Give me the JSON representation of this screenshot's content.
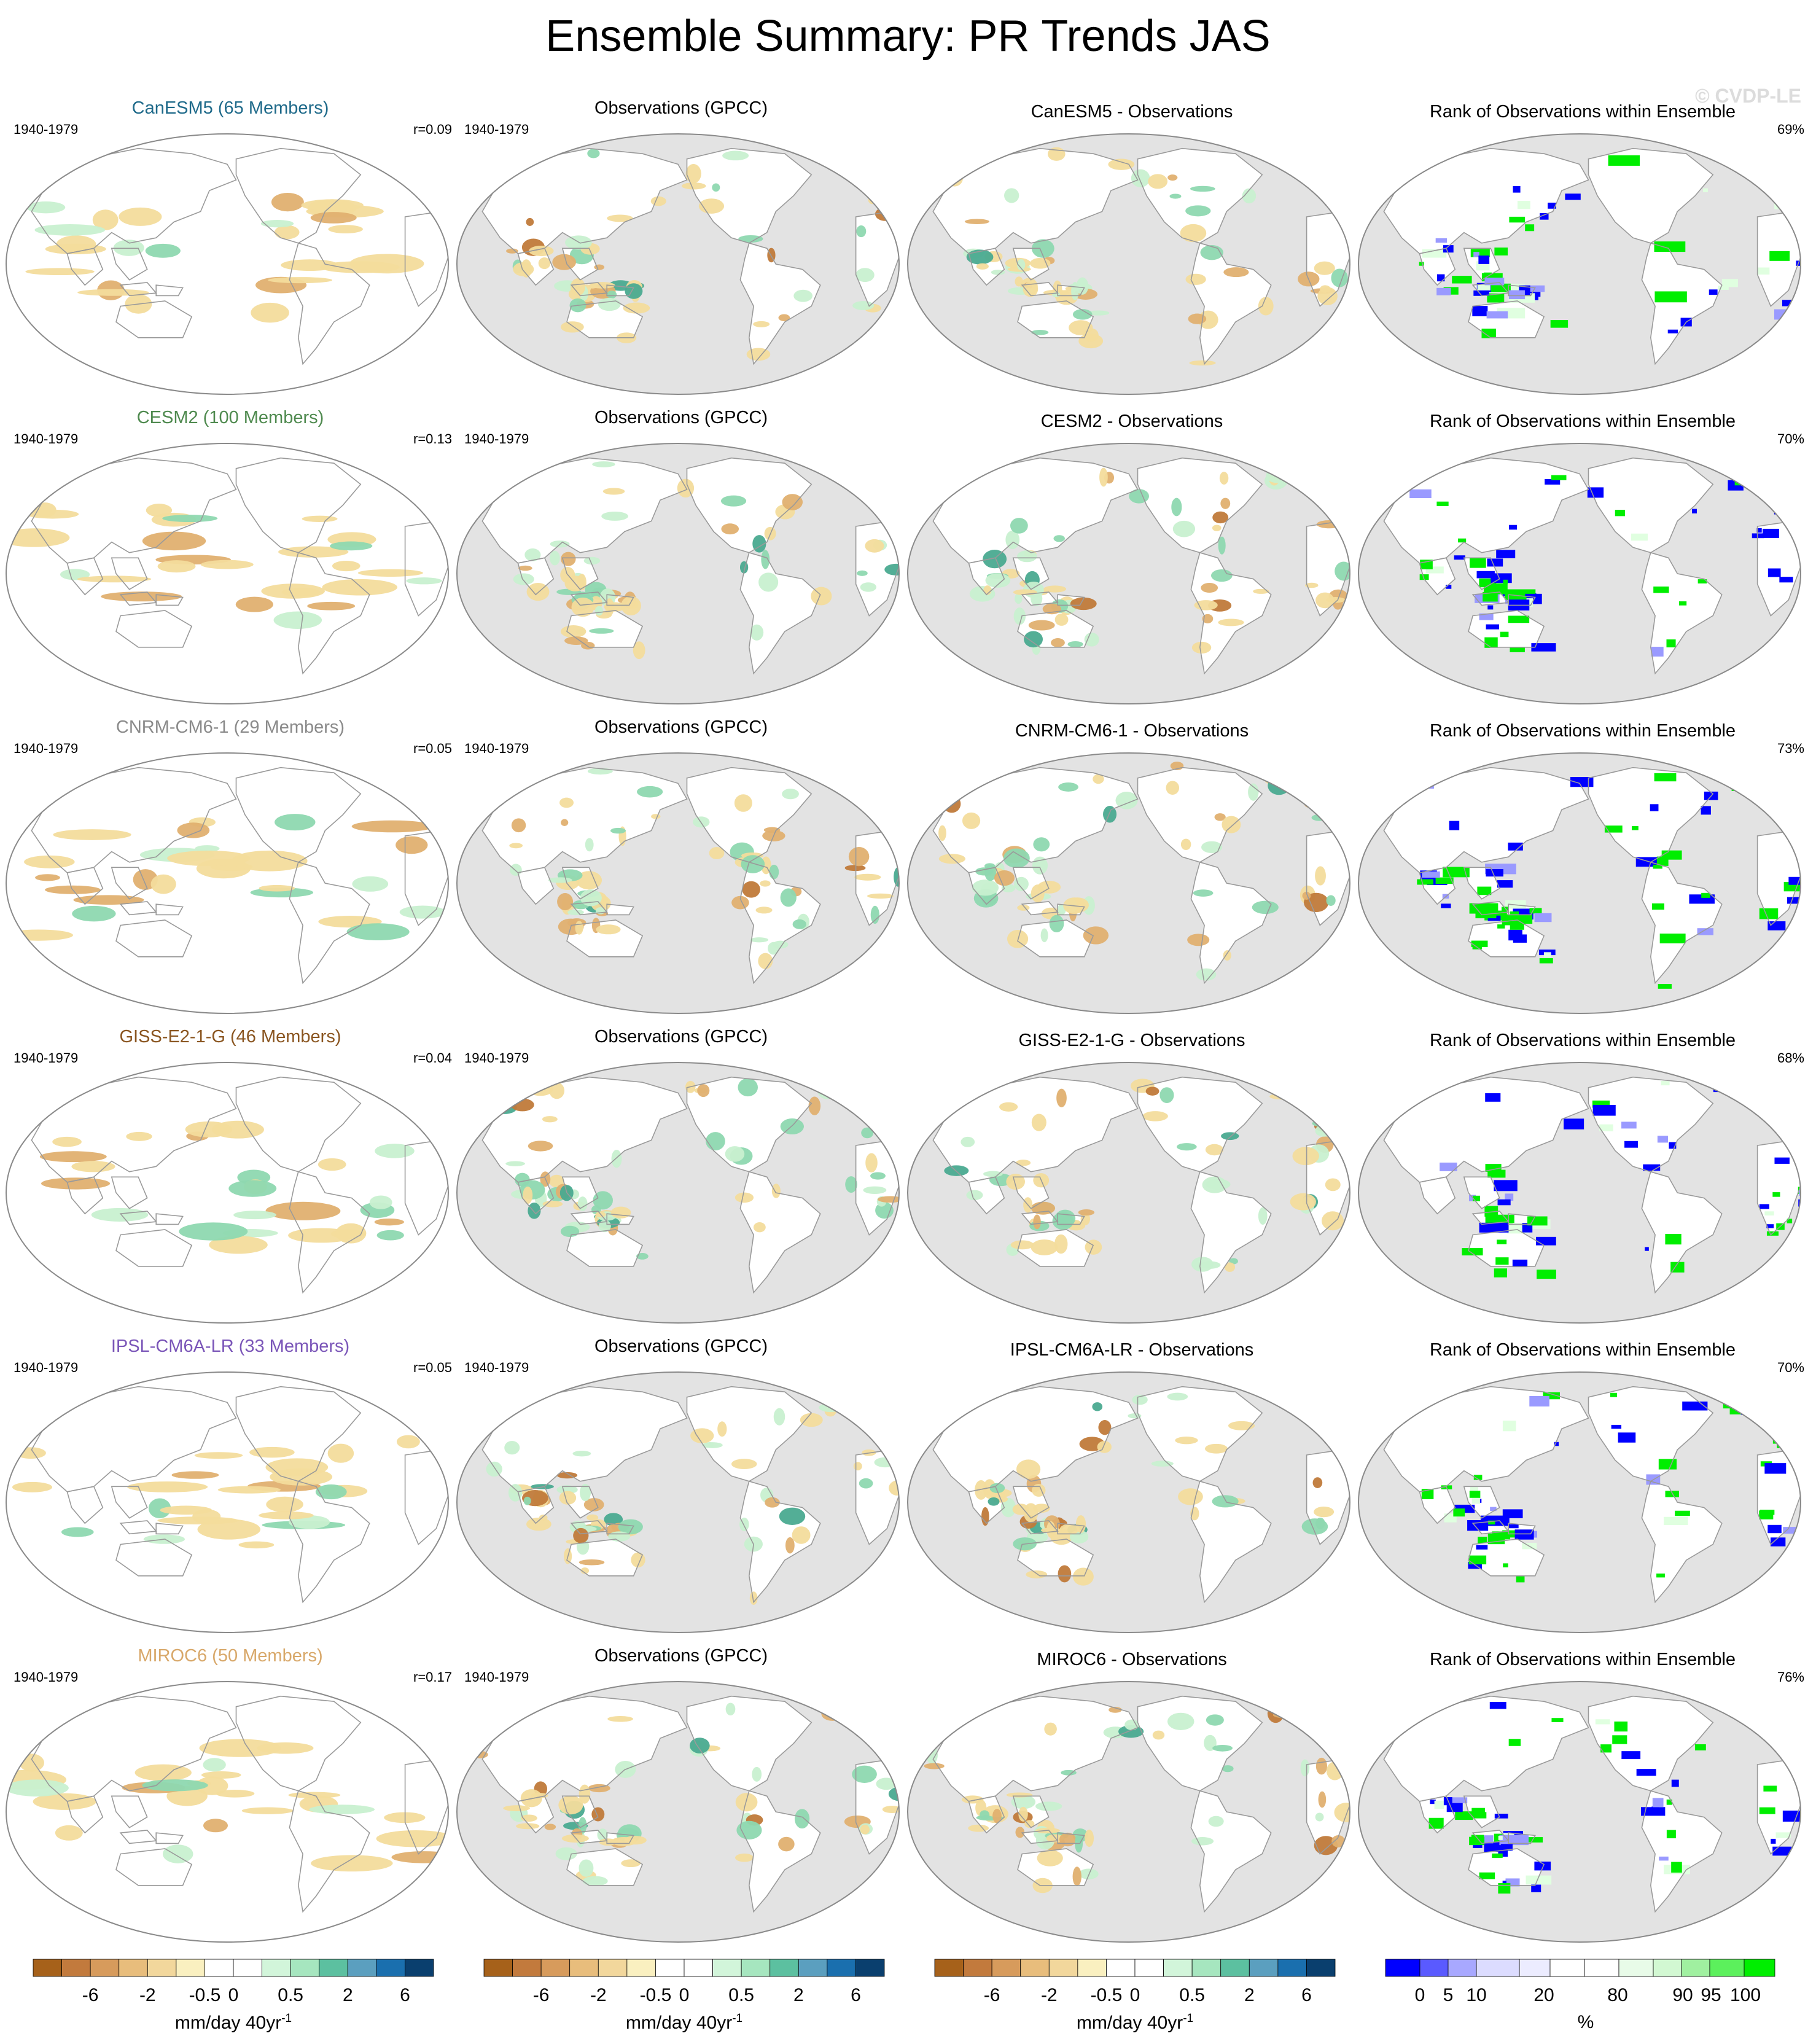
{
  "title": "Ensemble Summary: PR Trends JAS",
  "watermark": "© CVDP-LE",
  "obs_title": "Observations (GPCC)",
  "rank_title": "Rank of Observations within Ensemble",
  "period": "1940-1979",
  "colors": {
    "land_gray": "#e3e3e3",
    "coast": "#9a9a9a",
    "dry_strong": "#c07a3a",
    "dry_mid": "#e0b070",
    "dry_light": "#f3dc9c",
    "wet_light": "#c8f0d0",
    "wet_mid": "#8ed8b0",
    "wet_strong": "#4aaa90",
    "rank_low": "#0000ff",
    "rank_high": "#00ee00"
  },
  "rows": [
    {
      "model": "CanESM5 (65 Members)",
      "model_color": "#1f6a8a",
      "r": "r=0.09",
      "diff_title": "CanESM5 - Observations",
      "rank_pct": "69%"
    },
    {
      "model": "CESM2 (100 Members)",
      "model_color": "#4f8a4f",
      "r": "r=0.13",
      "diff_title": "CESM2 - Observations",
      "rank_pct": "70%"
    },
    {
      "model": "CNRM-CM6-1 (29 Members)",
      "model_color": "#8a8a8a",
      "r": "r=0.05",
      "diff_title": "CNRM-CM6-1 - Observations",
      "rank_pct": "73%"
    },
    {
      "model": "GISS-E2-1-G (46 Members)",
      "model_color": "#8a5520",
      "r": "r=0.04",
      "diff_title": "GISS-E2-1-G - Observations",
      "rank_pct": "68%"
    },
    {
      "model": "IPSL-CM6A-LR (33 Members)",
      "model_color": "#7a55b8",
      "r": "r=0.05",
      "diff_title": "IPSL-CM6A-LR - Observations",
      "rank_pct": "70%"
    },
    {
      "model": "MIROC6 (50 Members)",
      "model_color": "#d8a86a",
      "r": "r=0.17",
      "diff_title": "MIROC6 - Observations",
      "rank_pct": "76%"
    }
  ],
  "trend_colorbar": {
    "colors": [
      "#a6611a",
      "#c27a3d",
      "#d79b5c",
      "#e8bd7c",
      "#f2d79c",
      "#faf0c0",
      "#ffffff",
      "#ffffff",
      "#d2f5da",
      "#a6e6bf",
      "#5cc0a0",
      "#5b9fbf",
      "#1a6fae",
      "#0a3f6e"
    ],
    "ticks": [
      "-6",
      "-2",
      "-0.5",
      "0",
      "0.5",
      "2",
      "6"
    ],
    "label": "mm/day 40yr",
    "label_sup": "-1"
  },
  "rank_colorbar": {
    "colors": [
      "#0000ff",
      "#5a5aff",
      "#a8a8ff",
      "#dcdcff",
      "#ececff",
      "#ffffff",
      "#ffffff",
      "#e8fbe8",
      "#d2f8d2",
      "#a0f0a0",
      "#5cf05c",
      "#00ee00"
    ],
    "ticks": [
      "0",
      "5",
      "10",
      "20",
      "80",
      "90",
      "95",
      "100"
    ],
    "label": "%"
  }
}
